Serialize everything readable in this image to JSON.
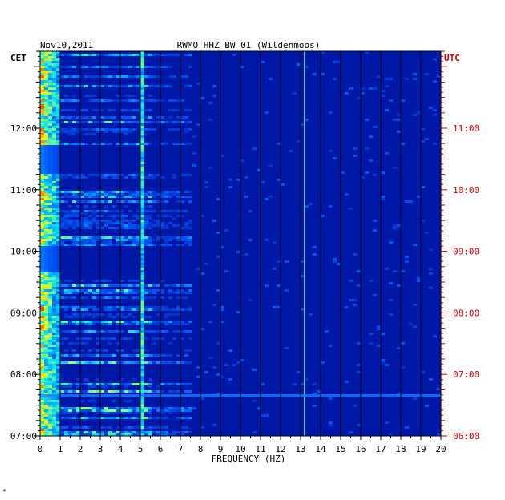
{
  "chart_data": {
    "type": "heatmap",
    "date": "Nov10,2011",
    "title": "RWMO HHZ BW 01 (Wildenmoos)",
    "left_timezone": "CET",
    "right_timezone": "UTC",
    "xlabel": "FREQUENCY (HZ)",
    "xlim": [
      0,
      20
    ],
    "x_ticks": [
      "0",
      "1",
      "2",
      "3",
      "4",
      "5",
      "6",
      "7",
      "8",
      "9",
      "10",
      "11",
      "12",
      "13",
      "14",
      "15",
      "16",
      "17",
      "18",
      "19",
      "20"
    ],
    "y_range_cet": [
      "07:00",
      "13:15"
    ],
    "y_ticks_cet": [
      "07:00",
      "08:00",
      "09:00",
      "10:00",
      "11:00",
      "12:00"
    ],
    "y_ticks_utc": [
      "06:00",
      "07:00",
      "08:00",
      "09:00",
      "10:00",
      "11:00"
    ],
    "colors": {
      "background": "#0018a8",
      "frame": "#000000",
      "utc_text": "#cc0000",
      "cet_text": "#000000"
    }
  },
  "footer_mark": "*"
}
